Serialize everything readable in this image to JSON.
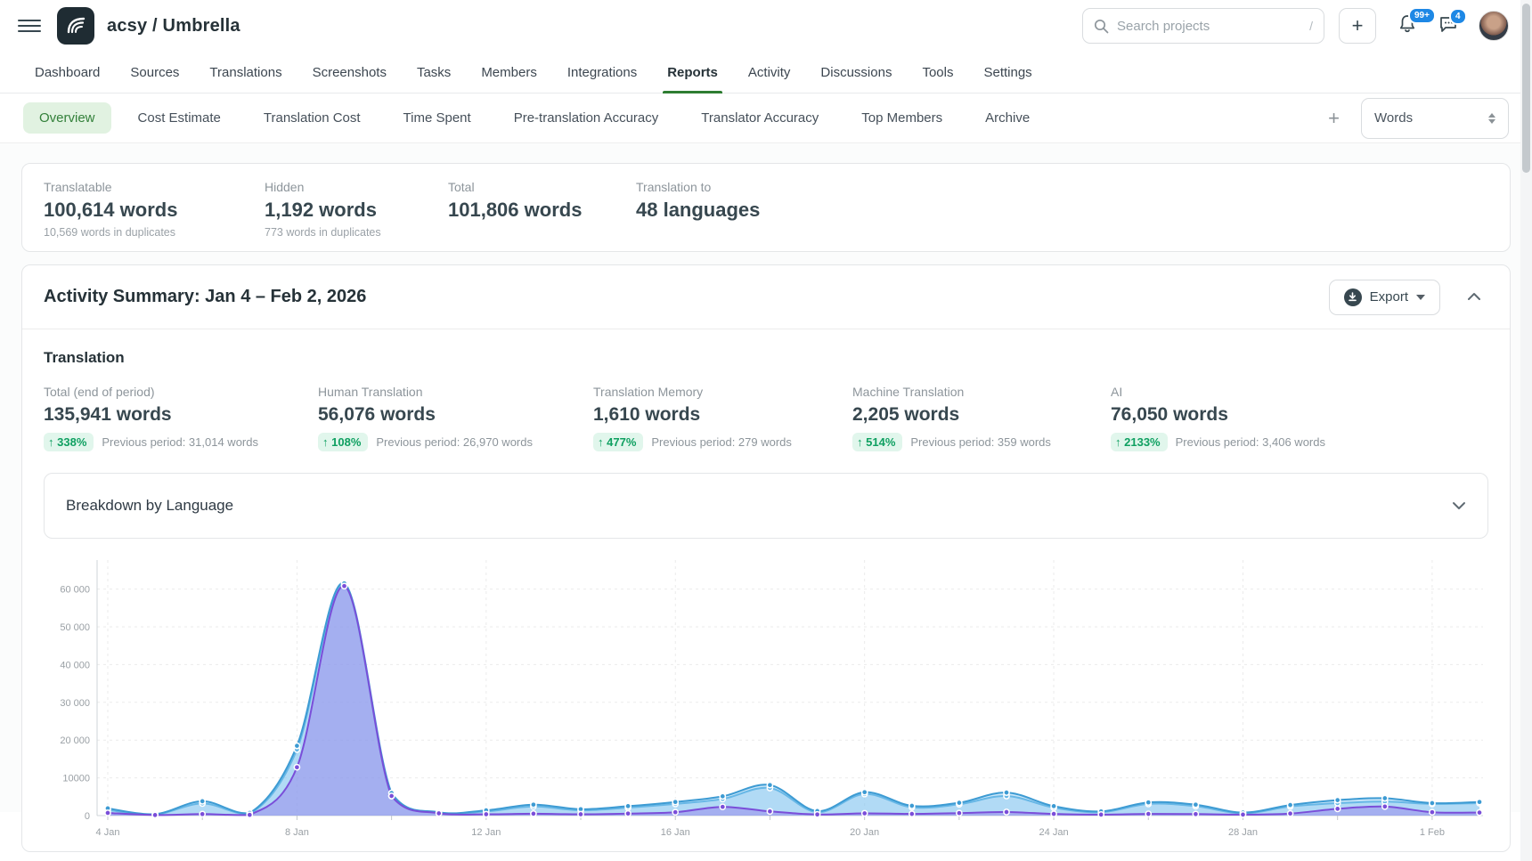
{
  "header": {
    "project_title": "acsy / Umbrella",
    "search": {
      "placeholder": "Search projects",
      "shortcut_hint": "/"
    },
    "notifications_badge": "99+",
    "messages_badge": "4"
  },
  "nav": {
    "active": "Reports",
    "items": [
      {
        "label": "Dashboard"
      },
      {
        "label": "Sources"
      },
      {
        "label": "Translations"
      },
      {
        "label": "Screenshots"
      },
      {
        "label": "Tasks"
      },
      {
        "label": "Members"
      },
      {
        "label": "Integrations"
      },
      {
        "label": "Reports"
      },
      {
        "label": "Activity"
      },
      {
        "label": "Discussions"
      },
      {
        "label": "Tools"
      },
      {
        "label": "Settings"
      }
    ]
  },
  "subnav": {
    "active": "Overview",
    "items": [
      {
        "label": "Overview"
      },
      {
        "label": "Cost Estimate"
      },
      {
        "label": "Translation Cost"
      },
      {
        "label": "Time Spent"
      },
      {
        "label": "Pre-translation Accuracy"
      },
      {
        "label": "Translator Accuracy"
      },
      {
        "label": "Top Members"
      },
      {
        "label": "Archive"
      }
    ],
    "unit_selector_value": "Words"
  },
  "project_stats": {
    "cards": [
      {
        "label": "Translatable",
        "value": "100,614 words",
        "sub": "10,569 words in duplicates"
      },
      {
        "label": "Hidden",
        "value": "1,192 words",
        "sub": "773 words in duplicates"
      },
      {
        "label": "Total",
        "value": "101,806 words"
      },
      {
        "label": "Translation to",
        "value": "48 languages"
      }
    ]
  },
  "activity": {
    "title": "Activity Summary: Jan 4 – Feb 2, 2026",
    "export_label": "Export",
    "section_title": "Translation",
    "metrics": [
      {
        "label": "Total (end of period)",
        "value": "135,941 words",
        "change": "338%",
        "previous": "Previous period: 31,014 words"
      },
      {
        "label": "Human Translation",
        "value": "56,076 words",
        "change": "108%",
        "previous": "Previous period: 26,970 words"
      },
      {
        "label": "Translation Memory",
        "value": "1,610 words",
        "change": "477%",
        "previous": "Previous period: 279 words"
      },
      {
        "label": "Machine Translation",
        "value": "2,205 words",
        "change": "514%",
        "previous": "Previous period: 359 words"
      },
      {
        "label": "AI",
        "value": "76,050 words",
        "change": "2133%",
        "previous": "Previous period: 3,406 words"
      }
    ],
    "breakdown_label": "Breakdown by Language"
  },
  "chart_data": {
    "type": "area",
    "title": "",
    "xlabel": "",
    "ylabel": "",
    "ylim": [
      0,
      65000
    ],
    "grid": true,
    "legend_position": "none",
    "x": [
      "Jan 4",
      "Jan 5",
      "Jan 6",
      "Jan 7",
      "Jan 8",
      "Jan 9",
      "Jan 10",
      "Jan 11",
      "Jan 12",
      "Jan 13",
      "Jan 14",
      "Jan 15",
      "Jan 16",
      "Jan 17",
      "Jan 18",
      "Jan 19",
      "Jan 20",
      "Jan 21",
      "Jan 22",
      "Jan 23",
      "Jan 24",
      "Jan 25",
      "Jan 26",
      "Jan 27",
      "Jan 28",
      "Jan 29",
      "Jan 30",
      "Jan 31",
      "Feb 1",
      "Feb 2"
    ],
    "x_tick_labels": [
      "4 Jan",
      "8 Jan",
      "12 Jan",
      "16 Jan",
      "20 Jan",
      "24 Jan",
      "28 Jan",
      "1 Feb"
    ],
    "y_ticks": [
      "0",
      "10000",
      "20 000",
      "30 000",
      "40 000",
      "50 000",
      "60 000"
    ],
    "series": [
      {
        "name": "light-blue",
        "color": "#67b7e6",
        "fill": "rgba(125,193,238,0.30)",
        "values": [
          1500,
          300,
          3200,
          500,
          17500,
          61000,
          5200,
          700,
          1100,
          2400,
          1400,
          2100,
          3100,
          4400,
          7300,
          900,
          5700,
          2200,
          3000,
          5200,
          2100,
          900,
          3100,
          2500,
          600,
          2400,
          3300,
          3700,
          3100,
          3300
        ]
      },
      {
        "name": "blue",
        "color": "#3d9bd3",
        "fill": "rgba(125,193,238,0.42)",
        "values": [
          1900,
          400,
          3800,
          700,
          18500,
          61500,
          6000,
          900,
          1400,
          2900,
          1700,
          2500,
          3600,
          5100,
          8100,
          1200,
          6200,
          2600,
          3400,
          6100,
          2500,
          1100,
          3500,
          2900,
          800,
          2800,
          4100,
          4600,
          3300,
          3600
        ]
      },
      {
        "name": "purple",
        "color": "#7a4ed9",
        "fill": "rgba(152,131,235,0.50)",
        "values": [
          700,
          150,
          400,
          200,
          12800,
          60800,
          5200,
          600,
          350,
          500,
          350,
          550,
          900,
          2300,
          1100,
          300,
          600,
          450,
          650,
          950,
          450,
          250,
          450,
          400,
          250,
          550,
          1800,
          2400,
          900,
          800
        ]
      }
    ]
  }
}
